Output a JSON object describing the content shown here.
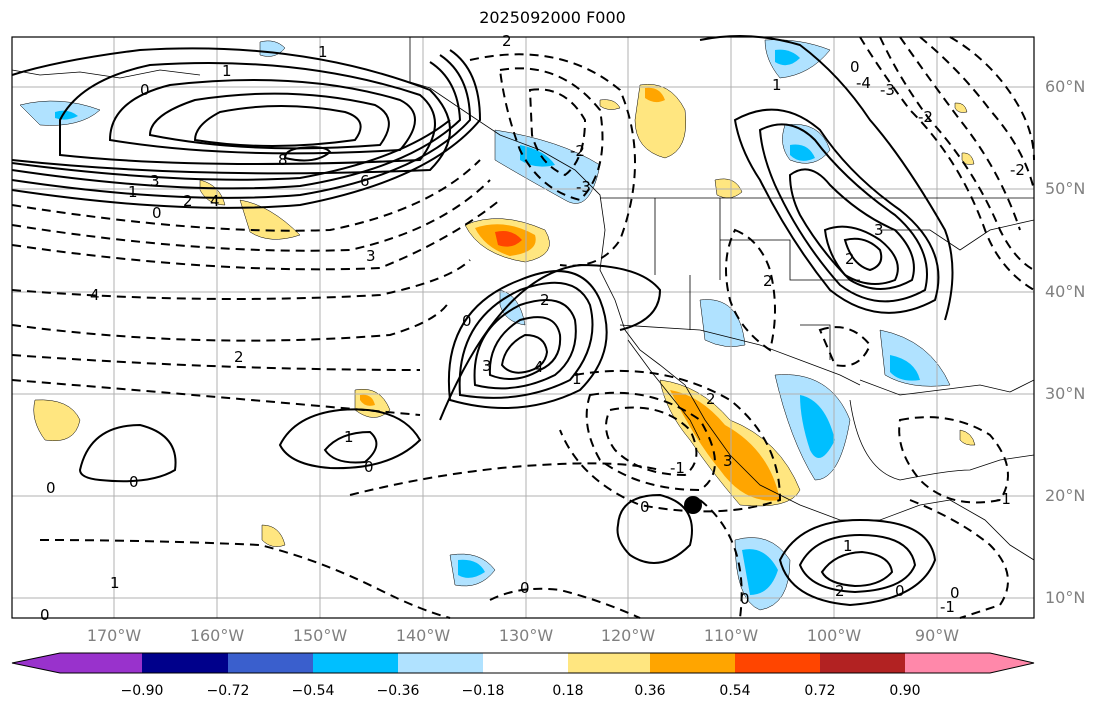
{
  "title": "2025092000 F000",
  "lat_labels": [
    "60°N",
    "50°N",
    "40°N",
    "30°N",
    "20°N",
    "10°N"
  ],
  "lon_labels": [
    "170°W",
    "160°W",
    "150°W",
    "140°W",
    "130°W",
    "120°W",
    "110°W",
    "100°W",
    "90°W"
  ],
  "colorbar": {
    "ticks": [
      "−0.90",
      "−0.72",
      "−0.54",
      "−0.36",
      "−0.18",
      "0.18",
      "0.36",
      "0.54",
      "0.72",
      "0.90"
    ],
    "colors": [
      "#9932cc",
      "#00008b",
      "#3a5fcd",
      "#00bfff",
      "#b0e2ff",
      "#ffffff",
      "#ffe680",
      "#ffa500",
      "#ff4500",
      "#b22222",
      "#ff88aa"
    ]
  },
  "contour_labels": [
    "1",
    "0",
    "8",
    "6",
    "3",
    "2",
    "1",
    "0",
    "1",
    "2",
    "3",
    "4",
    "3",
    "2",
    "0",
    "4",
    "2",
    "3",
    "4",
    "1",
    "2",
    "1",
    "0",
    "0",
    "0",
    "0",
    "-1",
    "2",
    "1",
    "0",
    "2",
    "3",
    "0",
    "0",
    "1",
    "2",
    "0",
    "1",
    "0",
    "-1",
    "0",
    "-2",
    "-3",
    "-4",
    "-2",
    "-2",
    "-3",
    "-1"
  ],
  "marker": "storm-center"
}
